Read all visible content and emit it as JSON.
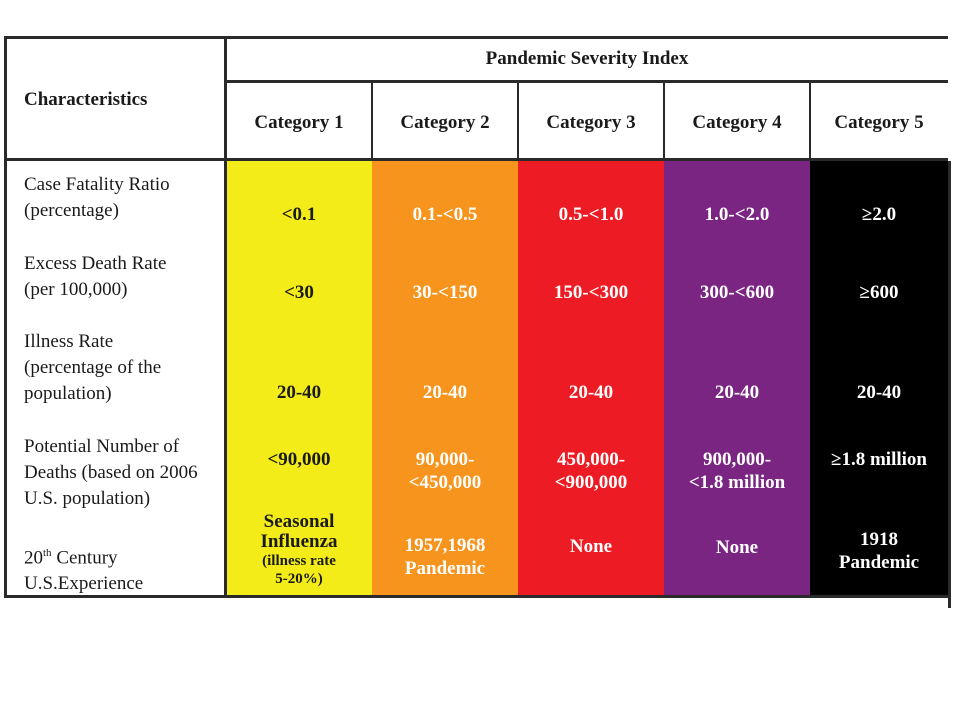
{
  "header": {
    "characteristics_label": "Characteristics",
    "index_title": "Pandemic Severity Index",
    "categories": [
      "Category 1",
      "Category 2",
      "Category 3",
      "Category 4",
      "Category 5"
    ]
  },
  "colors": {
    "category_1": "#f3ec19",
    "category_2": "#f7941d",
    "category_3": "#ed1c24",
    "category_4": "#7b2583",
    "category_5": "#000000"
  },
  "rows": [
    {
      "label_lines": [
        "Case Fatality Ratio",
        "(percentage)"
      ],
      "values": [
        "<0.1",
        "0.1-<0.5",
        "0.5-<1.0",
        "1.0-<2.0",
        "≥2.0"
      ]
    },
    {
      "label_lines": [
        "Excess Death Rate",
        "(per 100,000)"
      ],
      "values": [
        "<30",
        "30-<150",
        "150-<300",
        "300-<600",
        "≥600"
      ]
    },
    {
      "label_lines": [
        "Illness Rate",
        "(percentage of the",
        "population)"
      ],
      "values": [
        "20-40",
        "20-40",
        "20-40",
        "20-40",
        "20-40"
      ]
    },
    {
      "label_lines": [
        "Potential Number of",
        "Deaths (based on 2006",
        "U.S. population)"
      ],
      "values": [
        [
          "<90,000"
        ],
        [
          "90,000-",
          "<450,000"
        ],
        [
          "450,000-",
          "<900,000"
        ],
        [
          "900,000-",
          "<1.8 million"
        ],
        [
          "≥1.8 million"
        ]
      ]
    },
    {
      "label_line1_main": "20",
      "label_line1_sup": "th",
      "label_line1_rest": " Century",
      "label_line2": "U.S.Experience",
      "cat1_lines": [
        "Seasonal",
        "Influenza"
      ],
      "cat1_small_lines": [
        "(illness rate",
        "5-20%)"
      ],
      "values": [
        "",
        [
          "1957,1968",
          "Pandemic"
        ],
        "None",
        "None",
        [
          "1918",
          "Pandemic"
        ]
      ]
    }
  ]
}
